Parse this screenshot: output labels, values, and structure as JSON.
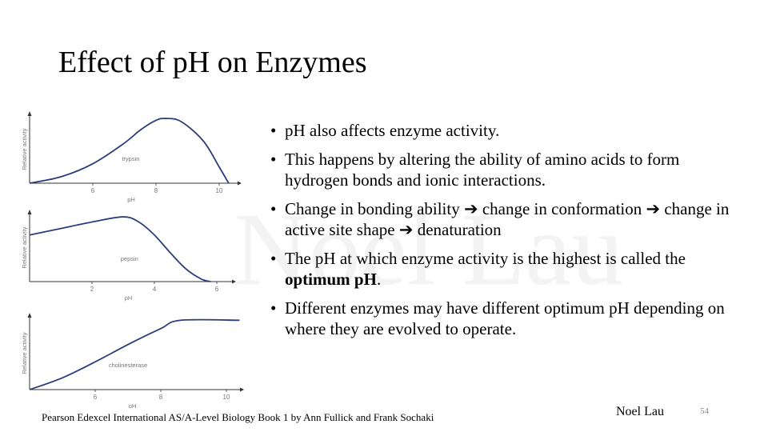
{
  "title": "Effect of pH on Enzymes",
  "watermark": "Noel Lau",
  "bullets": [
    {
      "parts": [
        {
          "text": "pH also affects enzyme activity."
        }
      ]
    },
    {
      "parts": [
        {
          "text": "This happens by altering the ability of amino acids to form hydrogen bonds and ionic interactions."
        }
      ]
    },
    {
      "parts": [
        {
          "text": "Change in bonding ability ➔ change in conformation ➔ change in active site shape ➔ denaturation"
        }
      ]
    },
    {
      "parts": [
        {
          "text": "The pH at which enzyme activity is the highest is called the "
        },
        {
          "text": "optimum pH",
          "bold": true
        },
        {
          "text": "."
        }
      ]
    },
    {
      "parts": [
        {
          "text": "Different enzymes may have different optimum pH depending on where they are evolved to operate."
        }
      ]
    }
  ],
  "footer": {
    "citation": "Pearson Edexcel International AS/A-Level Biology Book 1 by Ann Fullick and Frank Sochaki",
    "author": "Noel Lau",
    "page_number": "54"
  },
  "chart_data": [
    {
      "type": "line",
      "label": "trypsin",
      "xlabel": "pH",
      "ylabel": "Relative activity",
      "xlim": [
        4,
        10.5
      ],
      "ylim": [
        0,
        1.05
      ],
      "xticks": [
        6,
        8,
        10
      ],
      "grid": false,
      "color": "#2b3d7a",
      "x": [
        4,
        5,
        6,
        7,
        7.5,
        8,
        8.3,
        8.8,
        9.5,
        10,
        10.3
      ],
      "y": [
        0,
        0.1,
        0.3,
        0.62,
        0.82,
        0.97,
        1.0,
        0.95,
        0.65,
        0.25,
        0
      ]
    },
    {
      "type": "line",
      "label": "pepsin",
      "xlabel": "pH",
      "ylabel": "Relative activity",
      "xlim": [
        0,
        6.5
      ],
      "ylim": [
        0,
        1.05
      ],
      "xticks": [
        2,
        4,
        6
      ],
      "grid": false,
      "color": "#2b3d7a",
      "x": [
        0,
        1,
        2,
        3,
        3.5,
        4,
        4.5,
        5,
        5.5,
        5.8
      ],
      "y": [
        0.72,
        0.82,
        0.92,
        1.0,
        0.92,
        0.72,
        0.45,
        0.2,
        0.04,
        0
      ]
    },
    {
      "type": "line",
      "label": "cholinesterase",
      "xlabel": "pH",
      "ylabel": "Relative activity",
      "xlim": [
        4,
        10.6
      ],
      "ylim": [
        0,
        1.05
      ],
      "xticks": [
        6,
        8,
        10
      ],
      "grid": false,
      "color": "#2b3d7a",
      "x": [
        4,
        5,
        6,
        7,
        8,
        8.6,
        10.4
      ],
      "y": [
        0,
        0.17,
        0.4,
        0.65,
        0.88,
        1.0,
        1.0
      ]
    }
  ]
}
